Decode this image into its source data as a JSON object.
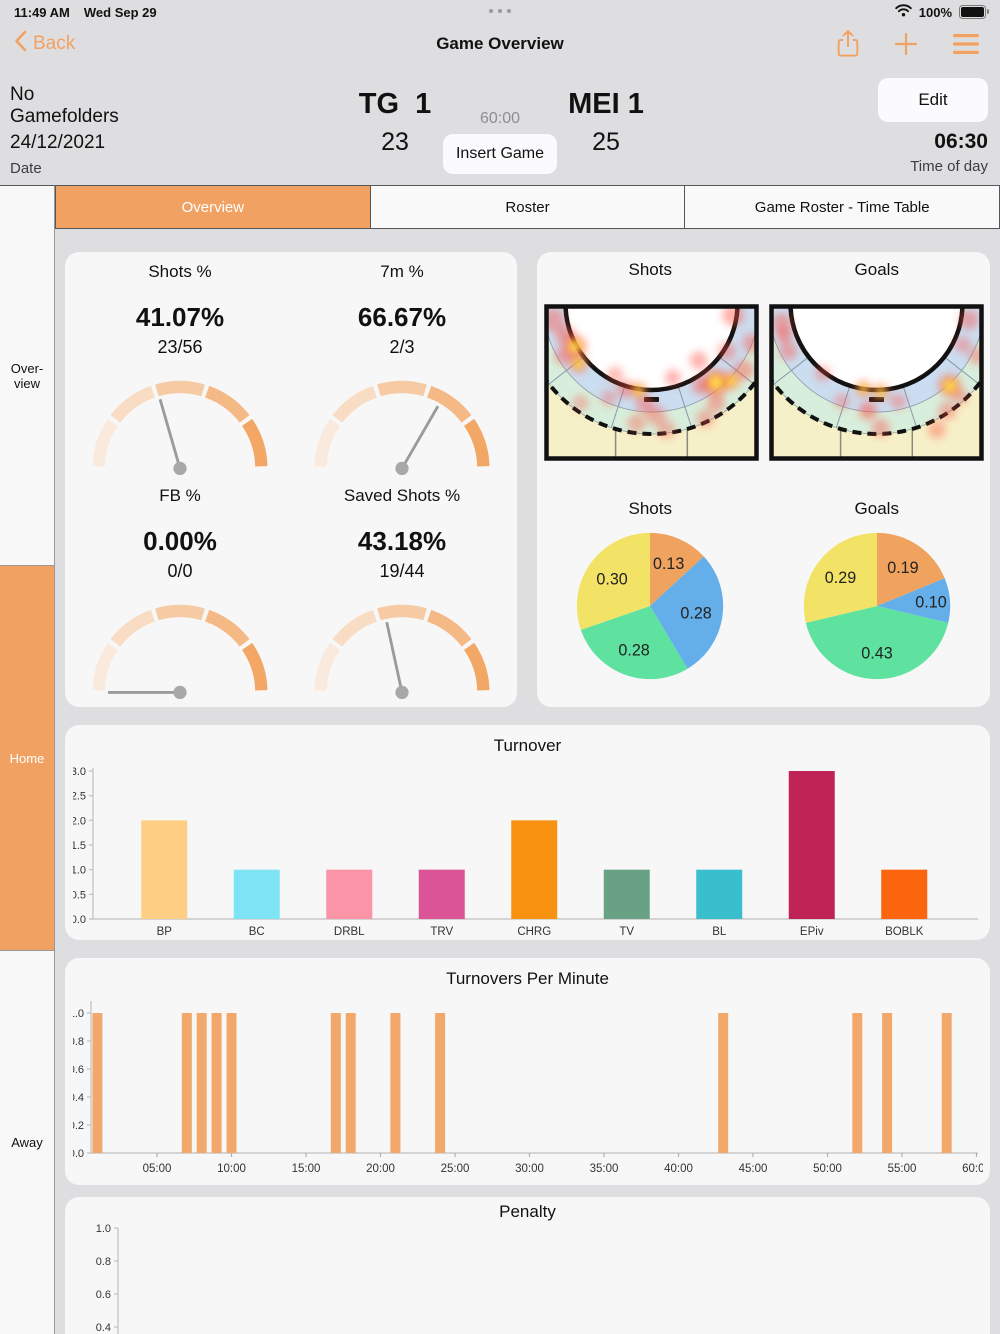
{
  "colors": {
    "accent": "#F1A262",
    "panel_bg": "#F7F7F8",
    "page_bg": "#DEDEE0"
  },
  "status_bar": {
    "time": "11:49 AM",
    "date": "Wed Sep 29",
    "battery_pct": "100%"
  },
  "icons": {
    "back": "chevron-left-icon",
    "share": "share-icon",
    "add": "plus-icon",
    "menu": "hamburger-icon",
    "wifi": "wifi-icon",
    "battery": "battery-full-icon",
    "multitask_handle": "three-dots-handle"
  },
  "nav": {
    "back_label": "Back",
    "title": "Game Overview"
  },
  "header": {
    "folder": "No Gamefolders",
    "date_value": "24/12/2021",
    "date_label": "Date",
    "home_team": "TG  1",
    "home_score": "23",
    "game_time": "60:00",
    "insert_button": "Insert Game",
    "away_team": "MEI 1",
    "away_score": "25",
    "edit_button": "Edit",
    "time_of_day_value": "06:30",
    "time_of_day_label": "Time of day"
  },
  "tabs": [
    {
      "label": "Overview",
      "active": true
    },
    {
      "label": "Roster",
      "active": false
    },
    {
      "label": "Game Roster - Time Table",
      "active": false
    }
  ],
  "sidebar": [
    {
      "label": "Over-view",
      "active": false
    },
    {
      "label": "Home",
      "active": true
    },
    {
      "label": "Away",
      "active": false
    }
  ],
  "chart_data": [
    {
      "id": "shots_pct",
      "type": "gauge",
      "title": "Shots %",
      "value": 41.07,
      "max": 100,
      "value_label": "41.07%",
      "fraction": "23/56",
      "segment_colors": [
        "#FAEADD",
        "#F8DCC3",
        "#F6CBA3",
        "#F4B985",
        "#F2A765"
      ],
      "needle_color": "#9B9B9B"
    },
    {
      "id": "sevenm_pct",
      "type": "gauge",
      "title": "7m %",
      "value": 66.67,
      "max": 100,
      "value_label": "66.67%",
      "fraction": "2/3",
      "segment_colors": [
        "#FAEADD",
        "#F8DCC3",
        "#F6CBA3",
        "#F4B985",
        "#F2A765"
      ],
      "needle_color": "#9B9B9B"
    },
    {
      "id": "fb_pct",
      "type": "gauge",
      "title": "FB %",
      "value": 0.0,
      "max": 100,
      "value_label": "0.00%",
      "fraction": "0/0",
      "segment_colors": [
        "#FAEADD",
        "#F8DCC3",
        "#F6CBA3",
        "#F4B985",
        "#F2A765"
      ],
      "needle_color": "#9B9B9B"
    },
    {
      "id": "saved_pct",
      "type": "gauge",
      "title": "Saved Shots %",
      "value": 43.18,
      "max": 100,
      "value_label": "43.18%",
      "fraction": "19/44",
      "segment_colors": [
        "#FAEADD",
        "#F8DCC3",
        "#F6CBA3",
        "#F4B985",
        "#F2A765"
      ],
      "needle_color": "#9B9B9B"
    },
    {
      "id": "shots_pie",
      "type": "pie",
      "title": "Shots",
      "values": [
        0.13,
        0.28,
        0.28,
        0.3
      ],
      "labels": [
        "0.13",
        "0.28",
        "0.28",
        "0.30"
      ],
      "slice_colors": [
        "#F0A35E",
        "#64AEEA",
        "#5FE2A0",
        "#F2E366"
      ],
      "start": "top",
      "direction": "clockwise"
    },
    {
      "id": "goals_pie",
      "type": "pie",
      "title": "Goals",
      "values": [
        0.19,
        0.1,
        0.43,
        0.29
      ],
      "labels": [
        "0.19",
        "0.10",
        "0.43",
        "0.29"
      ],
      "slice_colors": [
        "#F0A35E",
        "#64AEEA",
        "#5FE2A0",
        "#F2E366"
      ],
      "start": "top",
      "direction": "clockwise"
    },
    {
      "id": "turnover",
      "type": "bar",
      "title": "Turnover",
      "categories": [
        "BP",
        "BC",
        "DRBL",
        "TRV",
        "CHRG",
        "TV",
        "BL",
        "EPiv",
        "BOBLK"
      ],
      "values": [
        2,
        1,
        1,
        1,
        2,
        1,
        1,
        3,
        1
      ],
      "bar_colors": [
        "#FFCE85",
        "#7EE4F4",
        "#F995A7",
        "#DB5498",
        "#F79310",
        "#68A184",
        "#38BECD",
        "#C02457",
        "#FA650E"
      ],
      "ylim": [
        0,
        3.0
      ],
      "yticks": [
        0.0,
        0.5,
        1.0,
        1.5,
        2.0,
        2.5,
        3.0
      ],
      "grid": false
    },
    {
      "id": "turnovers_per_minute",
      "type": "bar",
      "title": "Turnovers Per Minute",
      "x_minutes": [
        1,
        7,
        8,
        9,
        10,
        17,
        18,
        21,
        24,
        43,
        52,
        54,
        58
      ],
      "bar_value": 1.0,
      "bar_color": "#F2A76B",
      "xlim_minutes": [
        0,
        60
      ],
      "xticks": [
        "05:00",
        "10:00",
        "15:00",
        "20:00",
        "25:00",
        "30:00",
        "35:00",
        "40:00",
        "45:00",
        "50:00",
        "55:00",
        "60:00"
      ],
      "ylim": [
        0,
        1.0
      ],
      "yticks": [
        0.0,
        0.2,
        0.4,
        0.6,
        0.8,
        1.0
      ],
      "grid": false
    },
    {
      "id": "penalty",
      "type": "bar",
      "title": "Penalty",
      "categories": [],
      "values": [],
      "ylim": [
        0,
        1.0
      ],
      "yticks": [
        1.0,
        0.8,
        0.6,
        0.4,
        0.2,
        0.0
      ],
      "grid": false,
      "note": "empty chart, bottom clipped by screen edge"
    }
  ],
  "heatmaps": {
    "court_colors": {
      "floor": "#F6F0C8",
      "inner_band": "#CBDDF0",
      "outer_band": "#D8EEDC",
      "line": "#111111"
    },
    "maps": [
      {
        "id": "heatmap-0",
        "title": "Shots",
        "points": [
          {
            "x": 0.04,
            "y": 0.1,
            "r": 12,
            "i": 0.5
          },
          {
            "x": 0.1,
            "y": 0.2,
            "r": 10,
            "i": 0.6
          },
          {
            "x": 0.145,
            "y": 0.27,
            "r": 11,
            "i": 1.0
          },
          {
            "x": 0.16,
            "y": 0.38,
            "r": 9,
            "i": 0.9
          },
          {
            "x": 0.09,
            "y": 0.33,
            "r": 9,
            "i": 0.5
          },
          {
            "x": 0.88,
            "y": 0.07,
            "r": 11,
            "i": 0.55
          },
          {
            "x": 0.97,
            "y": 0.25,
            "r": 10,
            "i": 0.5
          },
          {
            "x": 0.93,
            "y": 0.42,
            "r": 10,
            "i": 0.55
          },
          {
            "x": 0.72,
            "y": 0.36,
            "r": 9,
            "i": 0.5
          },
          {
            "x": 0.85,
            "y": 0.3,
            "r": 9,
            "i": 0.45
          },
          {
            "x": 0.8,
            "y": 0.5,
            "r": 13,
            "i": 1.0
          },
          {
            "x": 0.87,
            "y": 0.49,
            "r": 9,
            "i": 0.85
          },
          {
            "x": 0.73,
            "y": 0.52,
            "r": 9,
            "i": 0.6
          },
          {
            "x": 0.8,
            "y": 0.63,
            "r": 9,
            "i": 0.5
          },
          {
            "x": 0.75,
            "y": 0.73,
            "r": 9,
            "i": 0.4
          },
          {
            "x": 0.44,
            "y": 0.55,
            "r": 8,
            "i": 0.85
          },
          {
            "x": 0.38,
            "y": 0.54,
            "r": 9,
            "i": 0.5
          },
          {
            "x": 0.47,
            "y": 0.64,
            "r": 9,
            "i": 0.5
          },
          {
            "x": 0.52,
            "y": 0.71,
            "r": 10,
            "i": 0.45
          },
          {
            "x": 0.43,
            "y": 0.76,
            "r": 9,
            "i": 0.4
          },
          {
            "x": 0.57,
            "y": 0.8,
            "r": 9,
            "i": 0.35
          },
          {
            "x": 0.3,
            "y": 0.6,
            "r": 8,
            "i": 0.3
          },
          {
            "x": 0.17,
            "y": 0.63,
            "r": 8,
            "i": 0.3
          },
          {
            "x": 0.33,
            "y": 0.45,
            "r": 8,
            "i": 0.4
          },
          {
            "x": 0.6,
            "y": 0.47,
            "r": 8,
            "i": 0.5
          }
        ]
      },
      {
        "id": "heatmap-1",
        "title": "Goals",
        "points": [
          {
            "x": 0.06,
            "y": 0.12,
            "r": 10,
            "i": 0.55
          },
          {
            "x": 0.09,
            "y": 0.3,
            "r": 9,
            "i": 0.5
          },
          {
            "x": 0.07,
            "y": 0.2,
            "r": 8,
            "i": 0.7
          },
          {
            "x": 0.25,
            "y": 0.44,
            "r": 8,
            "i": 0.35
          },
          {
            "x": 0.93,
            "y": 0.1,
            "r": 10,
            "i": 0.5
          },
          {
            "x": 0.97,
            "y": 0.33,
            "r": 9,
            "i": 0.45
          },
          {
            "x": 0.9,
            "y": 0.26,
            "r": 8,
            "i": 0.4
          },
          {
            "x": 0.84,
            "y": 0.52,
            "r": 11,
            "i": 1.0
          },
          {
            "x": 0.44,
            "y": 0.54,
            "r": 8,
            "i": 0.85
          },
          {
            "x": 0.52,
            "y": 0.56,
            "r": 8,
            "i": 0.8
          },
          {
            "x": 0.46,
            "y": 0.68,
            "r": 9,
            "i": 0.75
          },
          {
            "x": 0.52,
            "y": 0.79,
            "r": 9,
            "i": 0.5
          },
          {
            "x": 0.6,
            "y": 0.62,
            "r": 8,
            "i": 0.4
          },
          {
            "x": 0.83,
            "y": 0.68,
            "r": 9,
            "i": 0.45
          },
          {
            "x": 0.78,
            "y": 0.8,
            "r": 9,
            "i": 0.4
          },
          {
            "x": 0.89,
            "y": 0.59,
            "r": 8,
            "i": 0.4
          },
          {
            "x": 0.34,
            "y": 0.62,
            "r": 8,
            "i": 0.3
          }
        ]
      }
    ]
  }
}
